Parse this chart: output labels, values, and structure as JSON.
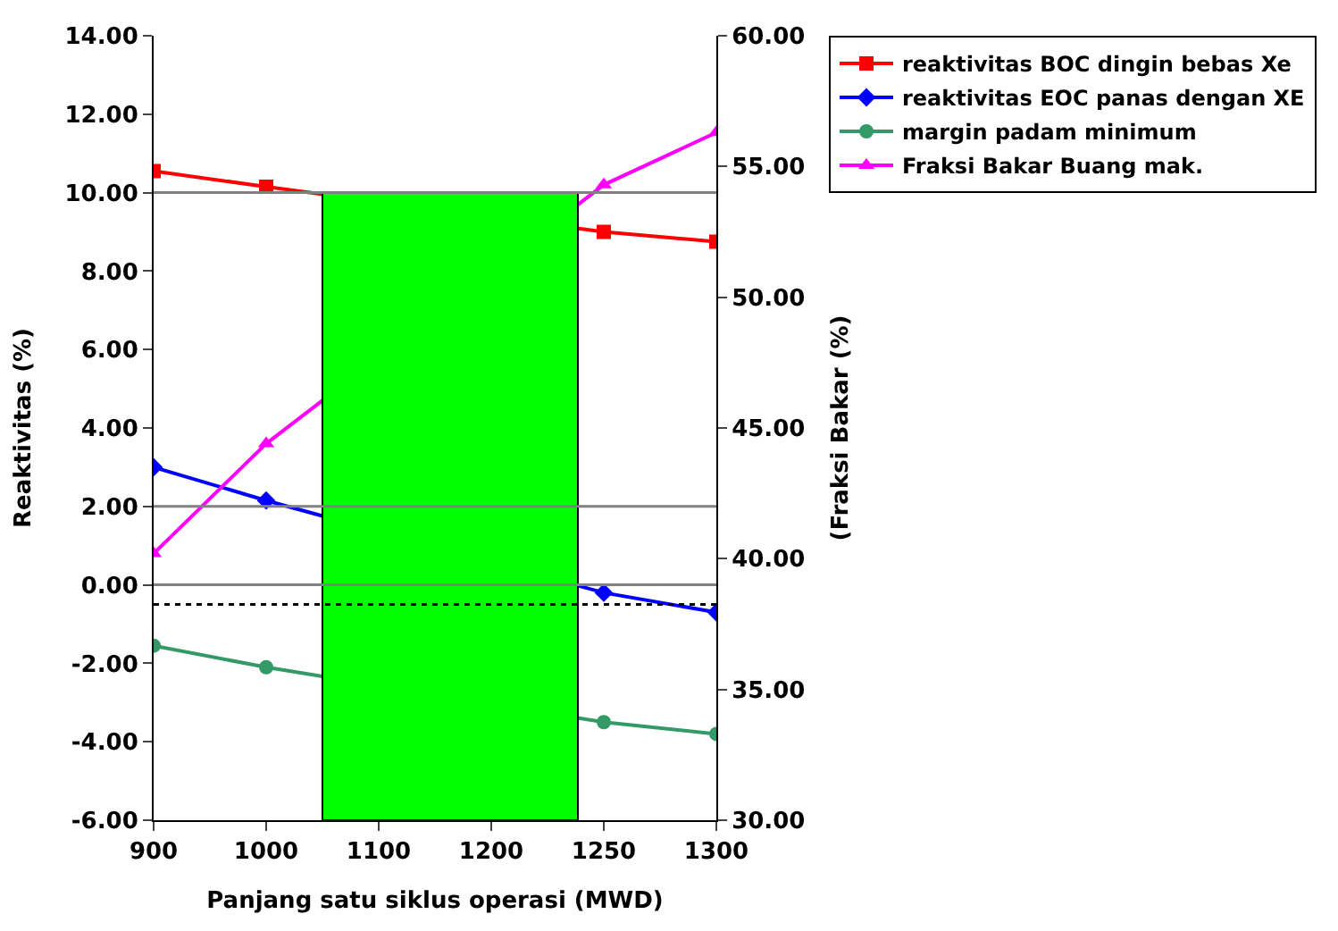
{
  "chart_data": {
    "type": "line",
    "xlabel": "Panjang satu siklus operasi (MWD)",
    "ylabel": "Reaktivitas (%)",
    "y2label": "(Fraksi Bakar (%)",
    "categories": [
      "900",
      "1000",
      "1100",
      "1200",
      "1250",
      "1300"
    ],
    "series": [
      {
        "name": "reaktivitas BOC dingin bebas Xe",
        "color": "#ff0000",
        "marker": "square",
        "values": [
          10.55,
          10.15,
          null,
          null,
          9.0,
          8.75
        ]
      },
      {
        "name": "reaktivitas EOC panas dengan XE",
        "color": "#0000ff",
        "marker": "diamond",
        "values": [
          3.0,
          2.15,
          null,
          null,
          -0.2,
          -0.7
        ]
      },
      {
        "name": "margin padam minimum",
        "color": "#339966",
        "marker": "circle",
        "values": [
          -1.55,
          -2.1,
          null,
          null,
          -3.5,
          -3.8
        ]
      },
      {
        "name": "Fraksi Bakar Buang mak.",
        "color": "#ff00ff",
        "marker": "triangle",
        "axis": "y2",
        "values": [
          40.2,
          44.4,
          null,
          null,
          54.3,
          56.3
        ]
      }
    ],
    "ylim": [
      -6,
      14
    ],
    "yticks": [
      {
        "value": -6,
        "label": "-6.00"
      },
      {
        "value": -4,
        "label": "-4.00"
      },
      {
        "value": -2,
        "label": "-2.00"
      },
      {
        "value": 0,
        "label": "0.00"
      },
      {
        "value": 2,
        "label": "2.00"
      },
      {
        "value": 4,
        "label": "4.00"
      },
      {
        "value": 6,
        "label": "6.00"
      },
      {
        "value": 8,
        "label": "8.00"
      },
      {
        "value": 10,
        "label": "10.00"
      },
      {
        "value": 12,
        "label": "12.00"
      },
      {
        "value": 14,
        "label": "14.00"
      }
    ],
    "y2lim": [
      30,
      60
    ],
    "y2ticks": [
      {
        "value": 30,
        "label": "30.00"
      },
      {
        "value": 35,
        "label": "35.00"
      },
      {
        "value": 40,
        "label": "40.00"
      },
      {
        "value": 45,
        "label": "45.00"
      },
      {
        "value": 50,
        "label": "50.00"
      },
      {
        "value": 55,
        "label": "55.00"
      },
      {
        "value": 60,
        "label": "60.00"
      }
    ],
    "ref_lines": [
      {
        "axis": "y",
        "value": 10,
        "color": "#808080"
      },
      {
        "axis": "y",
        "value": 2,
        "color": "#808080"
      },
      {
        "axis": "y",
        "value": 0,
        "color": "#808080"
      },
      {
        "axis": "y",
        "value": -0.5,
        "color": "#000000",
        "line_style": "dotted"
      }
    ],
    "legend": "top right",
    "line_style": "solid"
  }
}
